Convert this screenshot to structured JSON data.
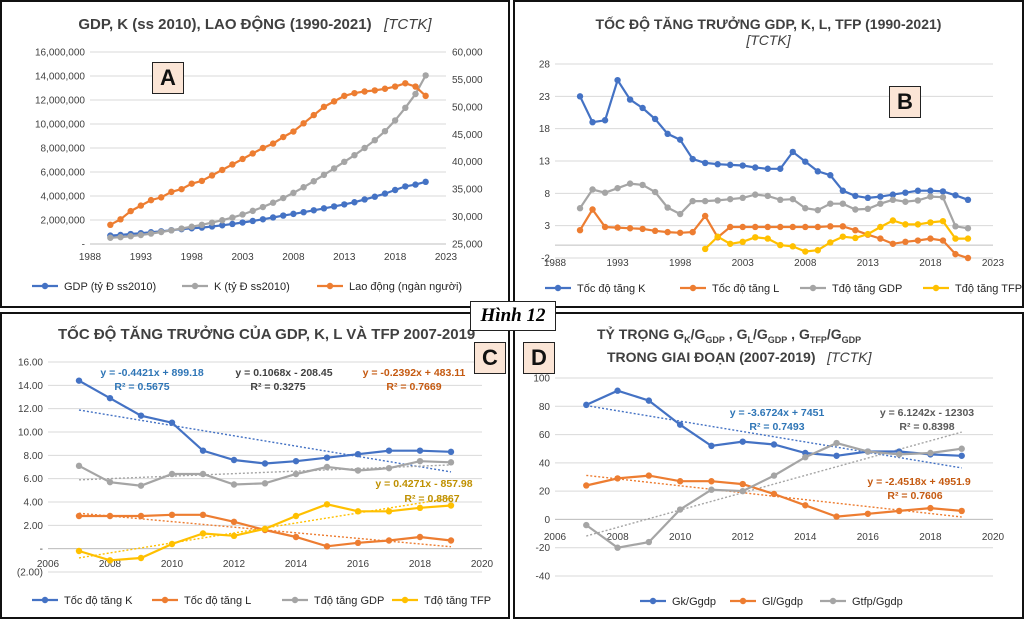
{
  "figure_label": "Hình 12",
  "charts": {
    "A": {
      "letter": "A",
      "title": "GDP, K (ss 2010), LAO ĐỘNG (1990-2021)",
      "source": "[TCTK]",
      "legend": [
        "GDP (tỷ Đ ss2010)",
        "K (tỷ Đ ss2010)",
        "Lao động (ngàn người)"
      ]
    },
    "B": {
      "letter": "B",
      "title": "TỐC ĐỘ TĂNG TRƯỞNG GDP, K, L, TFP  (1990-2021)",
      "source": "[TCTK]",
      "legend": [
        "Tốc độ tăng K",
        "Tốc độ tăng L",
        "Tđộ tăng GDP",
        "Tđộ tăng TFP"
      ]
    },
    "C": {
      "letter": "C",
      "title": "TỐC ĐỘ TĂNG TRƯỞNG CỦA GDP, K, L VÀ TFP 2007-2019",
      "legend": [
        "Tốc độ tăng K",
        "Tốc độ tăng L",
        "Tđộ tăng GDP",
        "Tđộ tăng TFP"
      ],
      "trend": {
        "k_eq": "y = -0.4421x + 899.18",
        "k_r2": "R² = 0.5675",
        "gdp_eq": "y = 0.1068x - 208.45",
        "gdp_r2": "R² = 0.3275",
        "l_eq": "y = -0.2392x + 483.11",
        "l_r2": "R² = 0.7669",
        "tfp_eq": "y = 0.4271x - 857.98",
        "tfp_r2": "R² = 0.8867"
      }
    },
    "D": {
      "letter": "D",
      "title_line1": "TỶ TRỌNG G",
      "title_line2": "TRONG GIAI ĐOẠN (2007-2019)",
      "source": "[TCTK]",
      "legend": [
        "Gk/Ggdp",
        "Gl/Ggdp",
        "Gtfp/Ggdp"
      ],
      "trend": {
        "k_eq": "y = -3.6724x + 7451",
        "k_r2": "R² = 0.7493",
        "tfp_eq": "y = 6.1242x - 12303",
        "tfp_r2": "R² = 0.8398",
        "l_eq": "y = -2.4518x + 4951.9",
        "l_r2": "R² = 0.7606"
      }
    }
  },
  "chart_data": [
    {
      "id": "A",
      "type": "line",
      "title": "GDP, K (ss 2010), LAO ĐỘNG (1990-2021)",
      "x": [
        1990,
        1991,
        1992,
        1993,
        1994,
        1995,
        1996,
        1997,
        1998,
        1999,
        2000,
        2001,
        2002,
        2003,
        2004,
        2005,
        2006,
        2007,
        2008,
        2009,
        2010,
        2011,
        2012,
        2013,
        2014,
        2015,
        2016,
        2017,
        2018,
        2019,
        2020,
        2021
      ],
      "xlim": [
        1988,
        2023
      ],
      "xticks": [
        1988,
        1993,
        1998,
        2003,
        2008,
        2013,
        2018,
        2023
      ],
      "ylim": [
        0,
        16000000
      ],
      "yticks": [
        0,
        2000000,
        4000000,
        6000000,
        8000000,
        10000000,
        12000000,
        14000000,
        16000000
      ],
      "ytick_labels": [
        "-",
        "2,000,000",
        "4,000,000",
        "6,000,000",
        "8,000,000",
        "10,000,000",
        "12,000,000",
        "14,000,000",
        "16,000,000"
      ],
      "y2lim": [
        25000,
        60000
      ],
      "y2ticks": [
        25000,
        30000,
        35000,
        40000,
        45000,
        50000,
        55000,
        60000
      ],
      "y2tick_labels": [
        "25,000",
        "30,000",
        "35,000",
        "40,000",
        "45,000",
        "50,000",
        "55,000",
        "60,000"
      ],
      "series": [
        {
          "name": "GDP (tỷ Đ ss2010)",
          "color": "#4472c4",
          "axis": "left",
          "values": [
            700000,
            750000,
            830000,
            900000,
            980000,
            1060000,
            1150000,
            1240000,
            1310000,
            1370000,
            1460000,
            1560000,
            1670000,
            1790000,
            1920000,
            2060000,
            2210000,
            2370000,
            2510000,
            2650000,
            2810000,
            2970000,
            3130000,
            3300000,
            3480000,
            3710000,
            3940000,
            4200000,
            4500000,
            4800000,
            4950000,
            5180000
          ]
        },
        {
          "name": "K (tỷ Đ ss2010)",
          "color": "#a5a5a5",
          "axis": "left",
          "values": [
            520000,
            570000,
            650000,
            750000,
            870000,
            1000000,
            1140000,
            1290000,
            1440000,
            1600000,
            1780000,
            1980000,
            2200000,
            2460000,
            2760000,
            3080000,
            3440000,
            3830000,
            4260000,
            4730000,
            5230000,
            5760000,
            6300000,
            6850000,
            7400000,
            8000000,
            8650000,
            9400000,
            10300000,
            11350000,
            12500000,
            14050000
          ]
        },
        {
          "name": "Lao động (ngàn người)",
          "color": "#ed7d31",
          "axis": "right",
          "values": [
            28500,
            29500,
            31000,
            32000,
            33000,
            33500,
            34500,
            35000,
            36000,
            36500,
            37500,
            38500,
            39500,
            40500,
            41500,
            42500,
            43300,
            44500,
            45500,
            47000,
            48500,
            50000,
            51000,
            52000,
            52500,
            52800,
            53000,
            53300,
            53700,
            54300,
            53700,
            52000
          ]
        }
      ],
      "legend": [
        "GDP (tỷ Đ ss2010)",
        "K (tỷ Đ ss2010)",
        "Lao động (ngàn người)"
      ]
    },
    {
      "id": "B",
      "type": "line",
      "title": "TỐC ĐỘ TĂNG TRƯỞNG GDP, K, L, TFP  (1990-2021)",
      "x": [
        1990,
        1991,
        1992,
        1993,
        1994,
        1995,
        1996,
        1997,
        1998,
        1999,
        2000,
        2001,
        2002,
        2003,
        2004,
        2005,
        2006,
        2007,
        2008,
        2009,
        2010,
        2011,
        2012,
        2013,
        2014,
        2015,
        2016,
        2017,
        2018,
        2019,
        2020,
        2021
      ],
      "xlim": [
        1988,
        2023
      ],
      "xticks": [
        1988,
        1993,
        1998,
        2003,
        2008,
        2013,
        2018,
        2023
      ],
      "ylim": [
        -2,
        28
      ],
      "yticks": [
        -2,
        3,
        8,
        13,
        18,
        23,
        28
      ],
      "ytick_labels": [
        "-2",
        "3",
        "8",
        "13",
        "18",
        "23",
        "28"
      ],
      "series": [
        {
          "name": "Tốc độ tăng K",
          "color": "#4472c4",
          "x": [
            1990,
            1991,
            1992,
            1993,
            1994,
            1995,
            1996,
            1997,
            1998,
            1999,
            2000,
            2001,
            2002,
            2003,
            2004,
            2005,
            2006,
            2007,
            2008,
            2009,
            2010,
            2011,
            2012,
            2013,
            2014,
            2015,
            2016,
            2017,
            2018,
            2019,
            2020,
            2021
          ],
          "values": [
            23.0,
            19.0,
            19.3,
            25.5,
            22.5,
            21.2,
            19.5,
            17.2,
            16.3,
            13.3,
            12.7,
            12.5,
            12.4,
            12.3,
            12.0,
            11.8,
            11.8,
            14.4,
            12.9,
            11.4,
            10.8,
            8.4,
            7.6,
            7.3,
            7.5,
            7.8,
            8.1,
            8.4,
            8.4,
            8.3,
            7.7,
            7.0
          ]
        },
        {
          "name": "Tốc độ tăng L",
          "color": "#ed7d31",
          "x": [
            1990,
            1991,
            1992,
            1993,
            1994,
            1995,
            1996,
            1997,
            1998,
            1999,
            2000,
            2001,
            2002,
            2003,
            2004,
            2005,
            2006,
            2007,
            2008,
            2009,
            2010,
            2011,
            2012,
            2013,
            2014,
            2015,
            2016,
            2017,
            2018,
            2019,
            2020,
            2021
          ],
          "values": [
            2.3,
            5.5,
            2.8,
            2.7,
            2.6,
            2.5,
            2.2,
            2.0,
            1.9,
            2.0,
            4.5,
            1.2,
            2.8,
            2.8,
            2.8,
            2.8,
            2.8,
            2.8,
            2.8,
            2.8,
            2.9,
            2.9,
            2.3,
            1.6,
            1.0,
            0.2,
            0.5,
            0.7,
            1.0,
            0.7,
            -1.4,
            -2.0
          ]
        },
        {
          "name": "Tđộ tăng GDP",
          "color": "#a5a5a5",
          "x": [
            1990,
            1991,
            1992,
            1993,
            1994,
            1995,
            1996,
            1997,
            1998,
            1999,
            2000,
            2001,
            2002,
            2003,
            2004,
            2005,
            2006,
            2007,
            2008,
            2009,
            2010,
            2011,
            2012,
            2013,
            2014,
            2015,
            2016,
            2017,
            2018,
            2019,
            2020,
            2021
          ],
          "values": [
            5.7,
            8.6,
            8.1,
            8.8,
            9.5,
            9.3,
            8.2,
            5.8,
            4.8,
            6.8,
            6.8,
            6.9,
            7.1,
            7.3,
            7.8,
            7.6,
            7.0,
            7.1,
            5.7,
            5.4,
            6.4,
            6.4,
            5.5,
            5.6,
            6.4,
            7.0,
            6.7,
            6.9,
            7.5,
            7.4,
            2.9,
            2.6
          ]
        },
        {
          "name": "Tđộ tăng TFP",
          "color": "#ffc000",
          "x": [
            2000,
            2001,
            2002,
            2003,
            2004,
            2005,
            2006,
            2007,
            2008,
            2009,
            2010,
            2011,
            2012,
            2013,
            2014,
            2015,
            2016,
            2017,
            2018,
            2019,
            2020,
            2021
          ],
          "values": [
            -0.6,
            1.3,
            0.2,
            0.5,
            1.2,
            1.0,
            0.0,
            -0.2,
            -1.0,
            -0.8,
            0.4,
            1.3,
            1.1,
            1.7,
            2.8,
            3.8,
            3.2,
            3.2,
            3.5,
            3.7,
            1.0,
            1.0
          ]
        }
      ],
      "legend": [
        "Tốc độ tăng K",
        "Tốc độ tăng L",
        "Tđộ tăng GDP",
        "Tđộ tăng TFP"
      ]
    },
    {
      "id": "C",
      "type": "line",
      "title": "TỐC ĐỘ TĂNG TRƯỞNG CỦA GDP, K, L VÀ TFP 2007-2019",
      "x": [
        2007,
        2008,
        2009,
        2010,
        2011,
        2012,
        2013,
        2014,
        2015,
        2016,
        2017,
        2018,
        2019
      ],
      "xlim": [
        2006,
        2020
      ],
      "xticks": [
        2006,
        2008,
        2010,
        2012,
        2014,
        2016,
        2018,
        2020
      ],
      "ylim": [
        -2,
        16
      ],
      "yticks": [
        -2,
        0,
        2,
        4,
        6,
        8,
        10,
        12,
        14,
        16
      ],
      "ytick_labels": [
        "(2.00)",
        "-",
        "2.00",
        "4.00",
        "6.00",
        "8.00",
        "10.00",
        "12.00",
        "14.00",
        "16.00"
      ],
      "series": [
        {
          "name": "Tốc độ tăng K",
          "color": "#4472c4",
          "values": [
            14.4,
            12.9,
            11.4,
            10.8,
            8.4,
            7.6,
            7.3,
            7.5,
            7.8,
            8.1,
            8.4,
            8.4,
            8.3
          ],
          "trend": {
            "slope": -0.4421,
            "intercept": 899.18
          }
        },
        {
          "name": "Tốc độ tăng L",
          "color": "#ed7d31",
          "values": [
            2.8,
            2.8,
            2.8,
            2.9,
            2.9,
            2.3,
            1.6,
            1.0,
            0.2,
            0.5,
            0.7,
            1.0,
            0.7
          ],
          "trend": {
            "slope": -0.2392,
            "intercept": 483.11
          }
        },
        {
          "name": "Tđộ tăng GDP",
          "color": "#a5a5a5",
          "values": [
            7.1,
            5.7,
            5.4,
            6.4,
            6.4,
            5.5,
            5.6,
            6.4,
            7.0,
            6.7,
            6.9,
            7.5,
            7.4
          ],
          "trend": {
            "slope": 0.1068,
            "intercept": -208.45
          }
        },
        {
          "name": "Tđộ tăng TFP",
          "color": "#ffc000",
          "values": [
            -0.2,
            -1.0,
            -0.8,
            0.4,
            1.3,
            1.1,
            1.7,
            2.8,
            3.8,
            3.2,
            3.2,
            3.5,
            3.7
          ],
          "trend": {
            "slope": 0.4271,
            "intercept": -857.98
          }
        }
      ],
      "legend": [
        "Tốc độ tăng K",
        "Tốc độ tăng L",
        "Tđộ tăng GDP",
        "Tđộ tăng TFP"
      ]
    },
    {
      "id": "D",
      "type": "line",
      "title": "TỶ TRỌNG GK/GGDP, GL/GGDP, GTFP/GGDP TRONG GIAI ĐOẠN (2007-2019)",
      "x": [
        2007,
        2008,
        2009,
        2010,
        2011,
        2012,
        2013,
        2014,
        2015,
        2016,
        2017,
        2018,
        2019
      ],
      "xlim": [
        2006,
        2020
      ],
      "xticks": [
        2006,
        2008,
        2010,
        2012,
        2014,
        2016,
        2018,
        2020
      ],
      "ylim": [
        -40,
        100
      ],
      "yticks": [
        -40,
        -20,
        0,
        20,
        40,
        60,
        80,
        100
      ],
      "ytick_labels": [
        "-40",
        "-20",
        "0",
        "20",
        "40",
        "60",
        "80",
        "100"
      ],
      "series": [
        {
          "name": "Gk/Ggdp",
          "color": "#4472c4",
          "values": [
            81,
            91,
            84,
            67,
            52,
            55,
            53,
            47,
            45,
            48,
            48,
            46,
            45
          ],
          "trend": {
            "slope": -3.6724,
            "intercept": 7451
          }
        },
        {
          "name": "Gl/Ggdp",
          "color": "#ed7d31",
          "values": [
            24,
            29,
            31,
            27,
            27,
            25,
            18,
            10,
            2,
            4,
            6,
            8,
            6
          ],
          "trend": {
            "slope": -2.4518,
            "intercept": 4951.9
          }
        },
        {
          "name": "Gtfp/Ggdp",
          "color": "#a5a5a5",
          "values": [
            -4,
            -20,
            -16,
            7,
            21,
            20,
            31,
            44,
            54,
            48,
            46,
            47,
            50
          ],
          "trend": {
            "slope": 6.1242,
            "intercept": -12303
          }
        }
      ],
      "legend": [
        "Gk/Ggdp",
        "Gl/Ggdp",
        "Gtfp/Ggdp"
      ]
    }
  ]
}
